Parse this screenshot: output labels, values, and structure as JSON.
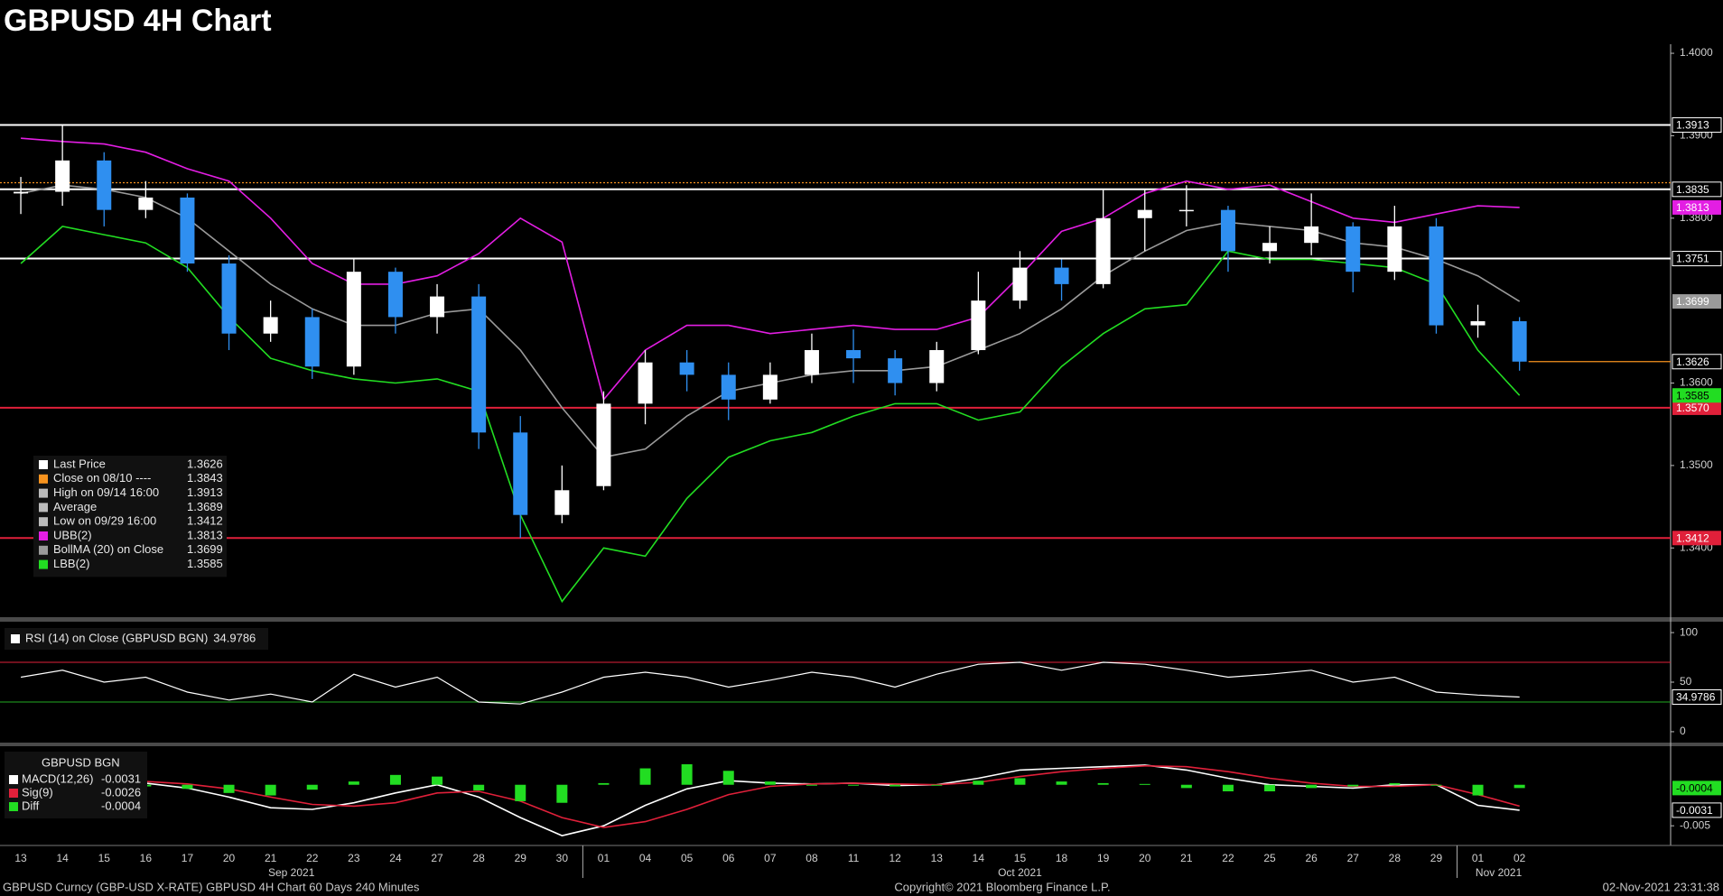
{
  "title": "GBPUSD 4H Chart",
  "footer": {
    "left": "GBPUSD Curncy (GBP-USD X-RATE) GBPUSD 4H Chart 60 Days 240 Minutes",
    "center": "Copyright© 2021 Bloomberg Finance L.P.",
    "right": "02-Nov-2021 23:31:38"
  },
  "chart_data": [
    {
      "type": "candlestick",
      "categories": [
        "13",
        "14",
        "15",
        "16",
        "17",
        "20",
        "21",
        "22",
        "23",
        "24",
        "27",
        "28",
        "29",
        "30",
        "01",
        "04",
        "05",
        "06",
        "07",
        "08",
        "11",
        "12",
        "13",
        "14",
        "15",
        "18",
        "19",
        "20",
        "21",
        "22",
        "25",
        "26",
        "27",
        "28",
        "29",
        "01",
        "02"
      ],
      "months": [
        {
          "label": "Sep 2021",
          "start": 0
        },
        {
          "label": "Oct 2021",
          "start": 14
        },
        {
          "label": "Nov 2021",
          "start": 35
        }
      ],
      "open": [
        1.383,
        1.3832,
        1.387,
        1.381,
        1.3825,
        1.3745,
        1.366,
        1.368,
        1.362,
        1.3735,
        1.368,
        1.3705,
        1.354,
        1.344,
        1.3475,
        1.3575,
        1.3625,
        1.361,
        1.358,
        1.361,
        1.364,
        1.363,
        1.36,
        1.364,
        1.37,
        1.374,
        1.372,
        1.38,
        1.381,
        1.381,
        1.376,
        1.377,
        1.379,
        1.3735,
        1.379,
        1.367,
        1.3675
      ],
      "high": [
        1.385,
        1.3913,
        1.388,
        1.3845,
        1.383,
        1.3755,
        1.37,
        1.369,
        1.375,
        1.374,
        1.372,
        1.372,
        1.356,
        1.35,
        1.359,
        1.364,
        1.364,
        1.3625,
        1.3625,
        1.366,
        1.3665,
        1.364,
        1.365,
        1.3735,
        1.376,
        1.375,
        1.3835,
        1.3835,
        1.384,
        1.3815,
        1.379,
        1.383,
        1.3795,
        1.3815,
        1.38,
        1.3695,
        1.368
      ],
      "low": [
        1.3805,
        1.3815,
        1.379,
        1.38,
        1.3735,
        1.364,
        1.365,
        1.3605,
        1.361,
        1.366,
        1.366,
        1.352,
        1.3412,
        1.343,
        1.347,
        1.355,
        1.359,
        1.3555,
        1.3575,
        1.36,
        1.36,
        1.3585,
        1.359,
        1.3635,
        1.369,
        1.37,
        1.3715,
        1.376,
        1.379,
        1.3735,
        1.3745,
        1.3755,
        1.371,
        1.3725,
        1.366,
        1.3655,
        1.3615
      ],
      "close": [
        1.3832,
        1.387,
        1.381,
        1.3825,
        1.3745,
        1.366,
        1.368,
        1.362,
        1.3735,
        1.368,
        1.3705,
        1.354,
        1.344,
        1.347,
        1.3575,
        1.3625,
        1.361,
        1.358,
        1.361,
        1.364,
        1.363,
        1.36,
        1.364,
        1.37,
        1.374,
        1.372,
        1.38,
        1.381,
        1.381,
        1.376,
        1.377,
        1.379,
        1.3735,
        1.379,
        1.367,
        1.3675,
        1.3626
      ],
      "up_color": "#ffffff",
      "down_color": "#2f8ff0",
      "series": [
        {
          "name": "UBB(2)",
          "color": "#e31ee3",
          "legend_value": 1.3813,
          "values": [
            1.3897,
            1.3893,
            1.389,
            1.388,
            1.386,
            1.3845,
            1.38,
            1.3745,
            1.372,
            1.372,
            1.373,
            1.3757,
            1.38,
            1.3771,
            1.358,
            1.364,
            1.367,
            1.367,
            1.366,
            1.3665,
            1.367,
            1.3665,
            1.3665,
            1.368,
            1.373,
            1.3784,
            1.38,
            1.383,
            1.3845,
            1.3835,
            1.384,
            1.382,
            1.38,
            1.3795,
            1.3805,
            1.3815,
            1.3813
          ]
        },
        {
          "name": "BollMA (20)  on Close",
          "color": "#9a9a9a",
          "legend_value": 1.3699,
          "values": [
            1.383,
            1.384,
            1.3835,
            1.3825,
            1.38,
            1.376,
            1.372,
            1.369,
            1.367,
            1.367,
            1.3685,
            1.369,
            1.364,
            1.357,
            1.351,
            1.352,
            1.356,
            1.359,
            1.36,
            1.361,
            1.3615,
            1.3615,
            1.362,
            1.364,
            1.366,
            1.369,
            1.373,
            1.376,
            1.3785,
            1.3795,
            1.379,
            1.3785,
            1.377,
            1.3765,
            1.375,
            1.373,
            1.3699
          ]
        },
        {
          "name": "LBB(2)",
          "color": "#22dd22",
          "legend_value": 1.3585,
          "values": [
            1.3745,
            1.379,
            1.378,
            1.377,
            1.374,
            1.368,
            1.363,
            1.3615,
            1.3605,
            1.36,
            1.3605,
            1.359,
            1.344,
            1.3335,
            1.34,
            1.339,
            1.346,
            1.351,
            1.353,
            1.354,
            1.356,
            1.3575,
            1.3575,
            1.3555,
            1.3565,
            1.362,
            1.366,
            1.369,
            1.3695,
            1.376,
            1.375,
            1.375,
            1.3745,
            1.374,
            1.372,
            1.364,
            1.3585
          ]
        }
      ],
      "legend": [
        {
          "name": "Last Price",
          "value": 1.3626,
          "color": "#ffffff",
          "line_color": "#f7931e",
          "tag": true
        },
        {
          "name": "Close on 08/10 ----",
          "value": 1.3843,
          "color": "#f7931e",
          "line_color": "#f7931e",
          "line_style": "dotted"
        },
        {
          "name": "High on 09/14 16:00",
          "value": 1.3913,
          "color": "#bbbbbb"
        },
        {
          "name": "Average",
          "value": 1.3689,
          "color": "#bbbbbb"
        },
        {
          "name": "Low on 09/29 16:00",
          "value": 1.3412,
          "color": "#bbbbbb"
        }
      ],
      "levels": [
        {
          "value": 1.3913,
          "color": "#ffffff"
        },
        {
          "value": 1.3835,
          "color": "#ffffff"
        },
        {
          "value": 1.3751,
          "color": "#ffffff"
        },
        {
          "value": 1.357,
          "label": "1.3570",
          "color": "#e0203a"
        },
        {
          "value": 1.3412,
          "color": "#e0203a"
        }
      ],
      "ylim": [
        1.3316,
        1.4011
      ],
      "yticks": [
        {
          "value": 1.34,
          "label": "1.3400"
        },
        {
          "value": 1.35,
          "label": "1.3500"
        },
        {
          "value": 1.36,
          "label": "1.3600"
        },
        {
          "value": 1.38,
          "label": "1.3800"
        },
        {
          "value": 1.39,
          "label": "1.3900"
        },
        {
          "value": 1.4,
          "label": "1.4000"
        }
      ]
    },
    {
      "type": "line",
      "title": "RSI (14)  on Close (GBPUSD BGN)",
      "value": 34.9786,
      "color": "#ffffff",
      "values": [
        55,
        62,
        50,
        55,
        40,
        32,
        38,
        30,
        58,
        45,
        55,
        30,
        28,
        40,
        55,
        60,
        55,
        45,
        52,
        60,
        55,
        45,
        58,
        68,
        70,
        62,
        70,
        68,
        62,
        55,
        58,
        62,
        50,
        55,
        40,
        37,
        34.9786
      ],
      "ref_lines": [
        {
          "value": 70,
          "color": "#e0203a"
        },
        {
          "value": 30,
          "color": "#22aa22"
        }
      ],
      "ylim": [
        -11,
        111
      ],
      "yticks": [
        0,
        50,
        100
      ]
    },
    {
      "type": "macd",
      "title": "GBPUSD BGN",
      "series": [
        {
          "name": "MACD(12,26)",
          "color": "#ffffff",
          "last": -0.0031,
          "tag": true,
          "values": [
            0.0005,
            0.0008,
            0.0005,
            0.0002,
            -0.0004,
            -0.0015,
            -0.0028,
            -0.003,
            -0.0022,
            -0.001,
            0.0,
            -0.0015,
            -0.004,
            -0.0062,
            -0.005,
            -0.0025,
            -0.0005,
            0.0005,
            0.0002,
            0.0001,
            0.0002,
            -0.0001,
            0.0,
            0.0008,
            0.0018,
            0.002,
            0.0022,
            0.0024,
            0.0018,
            0.0008,
            0.0,
            -0.0002,
            -0.0004,
            0.0,
            0.0,
            -0.0025,
            -0.0031
          ]
        },
        {
          "name": "Sig(9)",
          "color": "#e0203a",
          "last": -0.0026,
          "values": [
            0.0004,
            0.0005,
            0.0006,
            0.0004,
            0.0001,
            -0.0005,
            -0.0015,
            -0.0024,
            -0.0026,
            -0.0022,
            -0.001,
            -0.0008,
            -0.002,
            -0.004,
            -0.0052,
            -0.0045,
            -0.003,
            -0.0012,
            -0.0002,
            0.0001,
            0.0002,
            0.0001,
            0.0,
            0.0003,
            0.001,
            0.0016,
            0.002,
            0.0023,
            0.0022,
            0.0016,
            0.0008,
            0.0002,
            -0.0002,
            -0.0002,
            0.0,
            -0.0012,
            -0.0026
          ]
        },
        {
          "name": "Diff",
          "color": "#22dd22",
          "last": -0.0004,
          "tag": true,
          "style": "bar",
          "values": [
            0.0001,
            0.0003,
            -0.0001,
            -0.0002,
            -0.0005,
            -0.001,
            -0.0013,
            -0.0006,
            0.0004,
            0.0012,
            0.001,
            -0.0007,
            -0.002,
            -0.0022,
            0.0002,
            0.002,
            0.0025,
            0.0017,
            0.0004,
            0.0,
            0.0,
            -0.0002,
            0.0,
            0.0005,
            0.0008,
            0.0004,
            0.0002,
            0.0001,
            -0.0004,
            -0.0008,
            -0.0008,
            -0.0004,
            -0.0002,
            0.0002,
            0.0,
            -0.0013,
            -0.0004
          ]
        }
      ],
      "ylim": [
        -0.0074,
        0.0047
      ],
      "yticks": [
        -0.005
      ]
    }
  ]
}
